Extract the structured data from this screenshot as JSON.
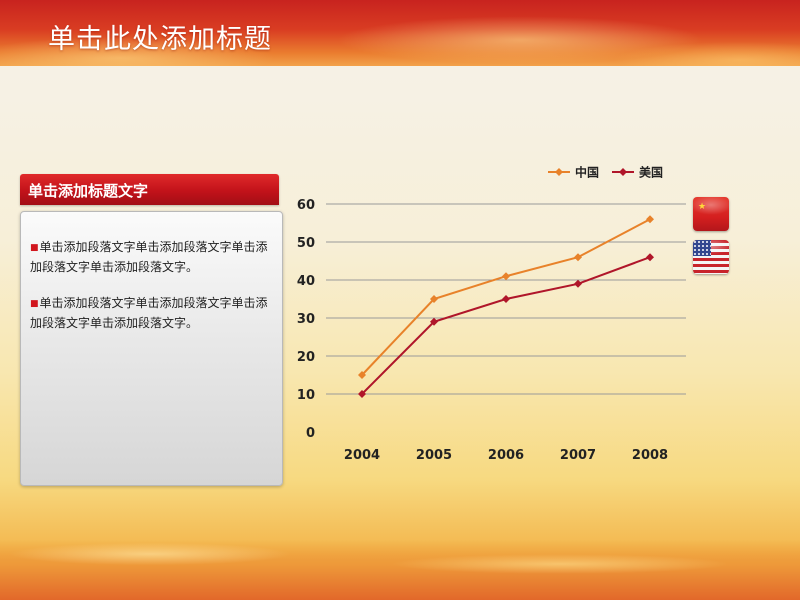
{
  "page_title": "单击此处添加标题",
  "panel": {
    "header": "单击添加标题文字",
    "paragraphs": [
      "单击添加段落文字单击添加段落文字单击添加段落文字单击添加段落文字。",
      "单击添加段落文字单击添加段落文字单击添加段落文字单击添加段落文字。"
    ]
  },
  "flags": [
    "china-flag-icon",
    "usa-flag-icon"
  ],
  "chart_data": {
    "type": "line",
    "title": "",
    "xlabel": "",
    "ylabel": "",
    "categories": [
      "2004",
      "2005",
      "2006",
      "2007",
      "2008"
    ],
    "series": [
      {
        "name": "中国",
        "values": [
          15,
          35,
          41,
          46,
          56
        ],
        "color": "#e8822a",
        "marker": "diamond"
      },
      {
        "name": "美国",
        "values": [
          10,
          29,
          35,
          39,
          46
        ],
        "color": "#b0162a",
        "marker": "diamond"
      }
    ],
    "ylim": [
      0,
      60
    ],
    "yticks": [
      0,
      10,
      20,
      30,
      40,
      50,
      60
    ],
    "grid": true,
    "legend": "top-right"
  }
}
